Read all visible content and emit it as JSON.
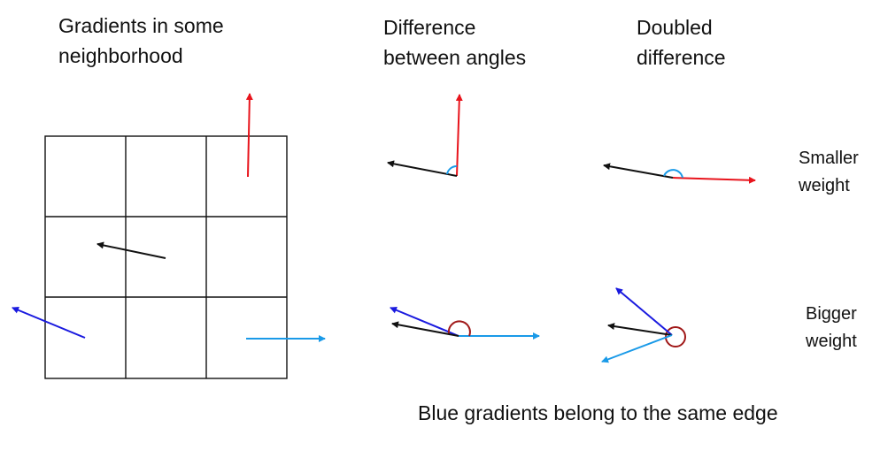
{
  "titles": {
    "neighborhood": "Gradients in some\nneighborhood",
    "difference": "Difference\nbetween angles",
    "doubled": "Doubled\ndifference"
  },
  "weights": {
    "smaller": "Smaller\nweight",
    "bigger": "Bigger\nweight"
  },
  "caption": "Blue gradients belong to the same edge",
  "colors": {
    "red": "#e8141c",
    "black": "#111111",
    "dark_blue": "#1a1adf",
    "light_blue": "#1a9ae8",
    "arc_light": "#1a9ae8",
    "arc_dark": "#a01818",
    "grid": "#111111"
  }
}
